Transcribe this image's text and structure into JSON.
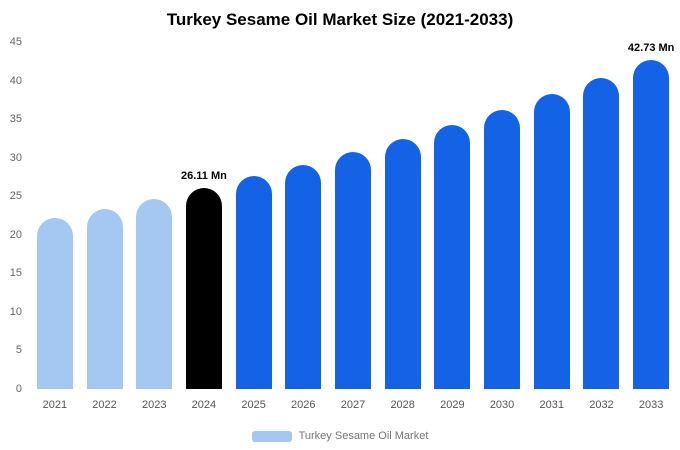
{
  "chart_data": {
    "type": "bar",
    "title": "Turkey Sesame Oil Market Size (2021-2033)",
    "categories": [
      "2021",
      "2022",
      "2023",
      "2024",
      "2025",
      "2026",
      "2027",
      "2028",
      "2029",
      "2030",
      "2031",
      "2032",
      "2033"
    ],
    "values": [
      22.2,
      23.4,
      24.7,
      26.11,
      27.6,
      29.1,
      30.7,
      32.4,
      34.2,
      36.2,
      38.2,
      40.3,
      42.73
    ],
    "unit": "Mn",
    "xlabel": "",
    "ylabel": "",
    "ylim": [
      0,
      45
    ],
    "ytick_step": 5,
    "grid": false,
    "bar_roles": [
      "historical",
      "historical",
      "historical",
      "base_year",
      "forecast",
      "forecast",
      "forecast",
      "forecast",
      "forecast",
      "forecast",
      "forecast",
      "forecast",
      "forecast"
    ],
    "colors": {
      "historical": "#a5c8f3",
      "base_year": "#000000",
      "forecast": "#1463e6",
      "legend_swatch": "#a5c8f3"
    },
    "annotations": [
      {
        "index": 3,
        "text": "26.11 Mn"
      },
      {
        "index": 12,
        "text": "42.73 Mn"
      }
    ],
    "legend": {
      "label": "Turkey Sesame Oil Market",
      "position": "bottom"
    }
  }
}
